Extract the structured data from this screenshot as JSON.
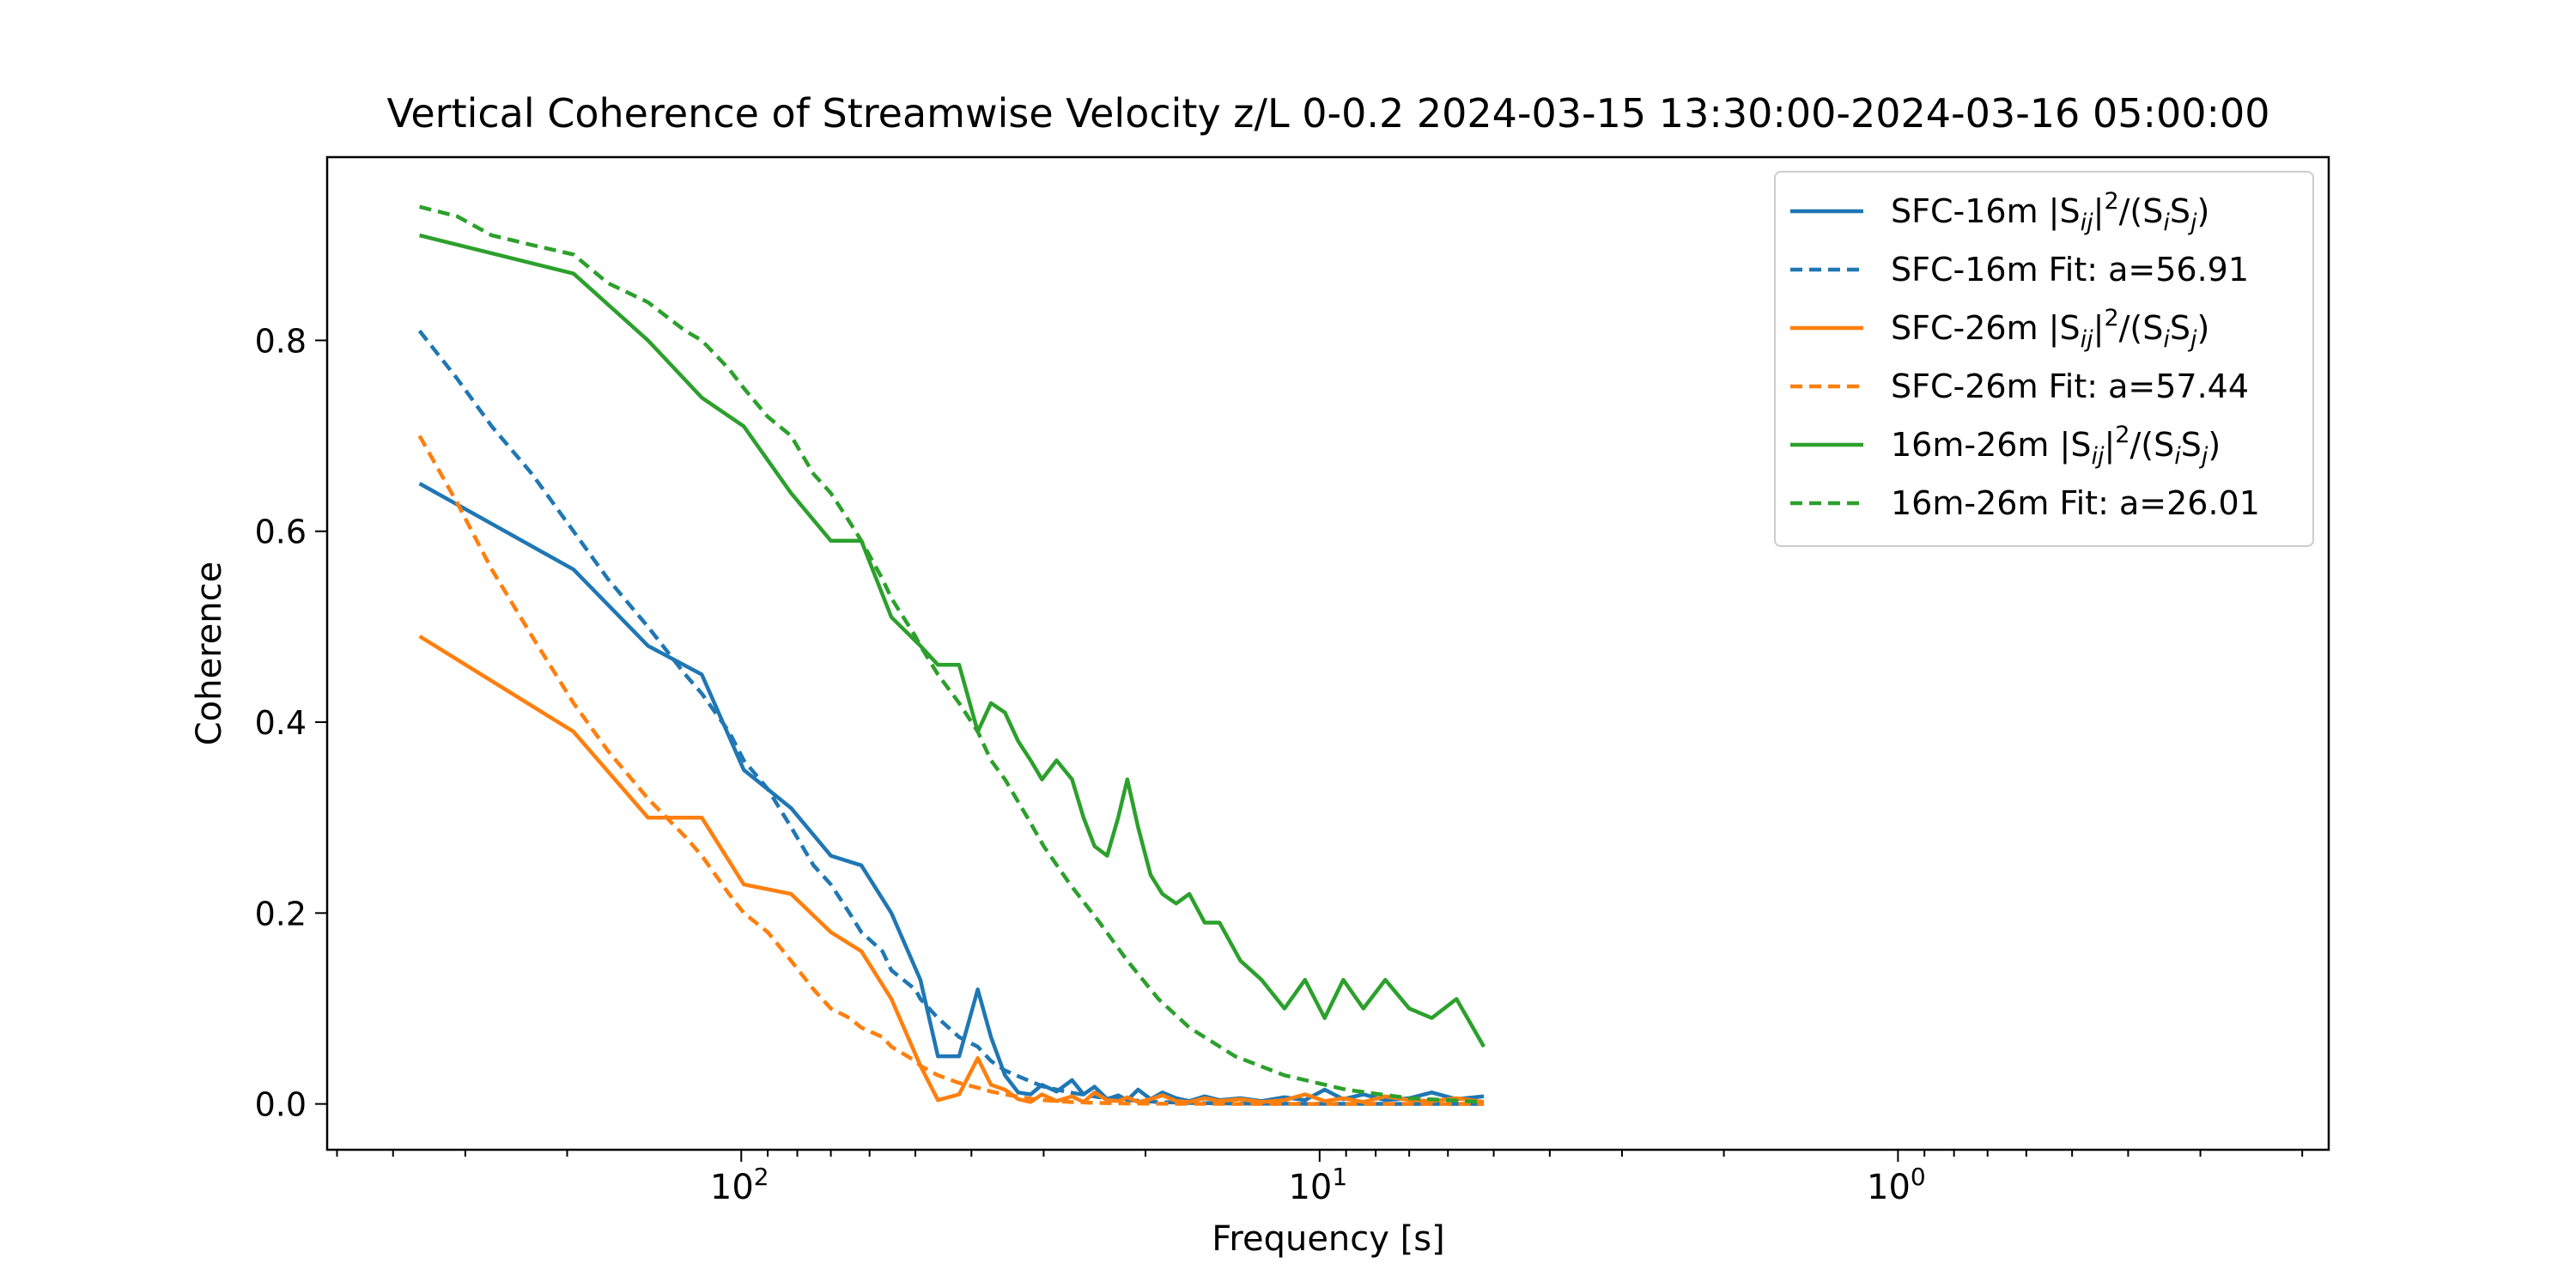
{
  "chart_data": {
    "type": "line",
    "title": "Vertical Coherence of Streamwise Velocity z/L 0-0.2 2024-03-15 13:30:00-2024-03-16 05:00:00",
    "xlabel": "Frequency [s]",
    "ylabel": "Coherence",
    "x_scale": "log",
    "x_reversed": true,
    "xlim": [
      520,
      0.18
    ],
    "ylim": [
      -0.048,
      0.992
    ],
    "grid": false,
    "legend_position": "top-right",
    "x_ticks": [
      {
        "value": 100,
        "base": "10",
        "exp": "2"
      },
      {
        "value": 10,
        "base": "10",
        "exp": "1"
      },
      {
        "value": 1,
        "base": "10",
        "exp": "0"
      }
    ],
    "y_ticks": [
      {
        "value": 0.0,
        "label": "0.0"
      },
      {
        "value": 0.2,
        "label": "0.2"
      },
      {
        "value": 0.4,
        "label": "0.4"
      },
      {
        "value": 0.6,
        "label": "0.6"
      },
      {
        "value": 0.8,
        "label": "0.8"
      }
    ],
    "series": [
      {
        "legend": {
          "prefix": "SFC-16m |S",
          "sub1": "ij",
          "mid1": "|",
          "sup": "2",
          "mid2": "/(S",
          "sub2": "i",
          "mid3": "S",
          "sub3": "j",
          "suffix": ")"
        },
        "color": "#1f77b4",
        "dash": false,
        "x": [
          360,
          195,
          145,
          117,
          99,
          82,
          70,
          62,
          55,
          49,
          45.7,
          42,
          39,
          37,
          35,
          33.2,
          31.6,
          30.2,
          28.5,
          26.8,
          25.6,
          24.5,
          23.3,
          22.3,
          21.5,
          20.6,
          19.6,
          18.7,
          17.7,
          16.8,
          15.8,
          14.9,
          13.7,
          12.6,
          11.5,
          10.6,
          9.8,
          9.1,
          8.4,
          7.7,
          7.0,
          6.4,
          5.8,
          5.2
        ],
        "y": [
          0.65,
          0.56,
          0.48,
          0.45,
          0.35,
          0.31,
          0.26,
          0.25,
          0.2,
          0.13,
          0.05,
          0.05,
          0.12,
          0.07,
          0.03,
          0.012,
          0.01,
          0.02,
          0.013,
          0.025,
          0.01,
          0.018,
          0.005,
          0.009,
          0.004,
          0.015,
          0.005,
          0.012,
          0.006,
          0.003,
          0.008,
          0.004,
          0.006,
          0.003,
          0.007,
          0.004,
          0.015,
          0.005,
          0.01,
          0.004,
          0.006,
          0.012,
          0.005,
          0.008
        ]
      },
      {
        "legend": {
          "prefix": "SFC-16m Fit: a=56.91"
        },
        "color": "#1f77b4",
        "dash": true,
        "x": [
          360,
          310,
          270,
          230,
          195,
          170,
          145,
          125,
          117,
          105,
          99,
          90,
          82,
          75,
          70,
          65,
          62,
          57,
          55,
          50,
          49,
          45.7,
          42,
          39,
          37,
          35,
          32,
          30,
          27,
          24,
          21.5,
          19,
          16.8,
          14,
          11.5,
          9,
          7,
          5.2
        ],
        "y": [
          0.81,
          0.76,
          0.71,
          0.66,
          0.6,
          0.55,
          0.5,
          0.45,
          0.43,
          0.39,
          0.36,
          0.33,
          0.29,
          0.25,
          0.23,
          0.2,
          0.18,
          0.16,
          0.14,
          0.12,
          0.11,
          0.09,
          0.07,
          0.06,
          0.045,
          0.035,
          0.025,
          0.018,
          0.012,
          0.007,
          0.004,
          0.002,
          0.001,
          0.0005,
          0.0002,
          0.0001,
          0.0,
          0.0
        ]
      },
      {
        "legend": {
          "prefix": "SFC-26m |S",
          "sub1": "ij",
          "mid1": "|",
          "sup": "2",
          "mid2": "/(S",
          "sub2": "i",
          "mid3": "S",
          "sub3": "j",
          "suffix": ")"
        },
        "color": "#ff7f0e",
        "dash": false,
        "x": [
          360,
          195,
          145,
          117,
          99,
          82,
          70,
          62,
          55,
          49,
          45.7,
          42,
          39,
          37,
          35,
          33.2,
          31.6,
          30.2,
          28.5,
          26.8,
          25.6,
          24.5,
          23.3,
          22.3,
          21.5,
          20.6,
          19.6,
          18.7,
          17.7,
          16.8,
          15.8,
          14.9,
          13.7,
          12.6,
          11.5,
          10.6,
          9.8,
          9.1,
          8.4,
          7.7,
          7.0,
          6.4,
          5.8,
          5.2
        ],
        "y": [
          0.49,
          0.39,
          0.3,
          0.3,
          0.23,
          0.22,
          0.18,
          0.16,
          0.11,
          0.04,
          0.004,
          0.01,
          0.048,
          0.02,
          0.015,
          0.005,
          0.002,
          0.01,
          0.003,
          0.008,
          0.002,
          0.012,
          0.004,
          0.003,
          0.007,
          0.002,
          0.005,
          0.009,
          0.003,
          0.002,
          0.006,
          0.003,
          0.005,
          0.002,
          0.004,
          0.01,
          0.003,
          0.006,
          0.002,
          0.008,
          0.004,
          0.003,
          0.006,
          0.002
        ]
      },
      {
        "legend": {
          "prefix": "SFC-26m Fit: a=57.44"
        },
        "color": "#ff7f0e",
        "dash": true,
        "x": [
          360,
          310,
          270,
          230,
          195,
          170,
          145,
          125,
          117,
          105,
          99,
          90,
          82,
          75,
          70,
          65,
          62,
          57,
          55,
          50,
          49,
          45.7,
          42,
          39,
          37,
          35,
          32,
          30,
          27,
          24,
          21.5,
          19,
          16.8,
          14,
          11.5,
          9,
          7,
          5.2
        ],
        "y": [
          0.7,
          0.63,
          0.56,
          0.49,
          0.42,
          0.37,
          0.32,
          0.28,
          0.26,
          0.22,
          0.2,
          0.18,
          0.15,
          0.12,
          0.1,
          0.09,
          0.08,
          0.07,
          0.06,
          0.045,
          0.04,
          0.03,
          0.022,
          0.017,
          0.013,
          0.01,
          0.006,
          0.004,
          0.002,
          0.001,
          0.0005,
          0.0002,
          0.0001,
          0.0,
          0.0,
          0.0,
          0.0,
          0.0
        ]
      },
      {
        "legend": {
          "prefix": "16m-26m |S",
          "sub1": "ij",
          "mid1": "|",
          "sup": "2",
          "mid2": "/(S",
          "sub2": "i",
          "mid3": "S",
          "sub3": "j",
          "suffix": ")"
        },
        "color": "#2ca02c",
        "dash": false,
        "x": [
          360,
          195,
          145,
          117,
          99,
          82,
          70,
          62,
          55,
          49,
          45.7,
          42,
          39,
          37,
          35,
          33.2,
          31.6,
          30.2,
          28.5,
          26.8,
          25.6,
          24.5,
          23.3,
          22.3,
          21.5,
          20.6,
          19.6,
          18.7,
          17.7,
          16.8,
          15.8,
          14.9,
          13.7,
          12.6,
          11.5,
          10.6,
          9.8,
          9.1,
          8.4,
          7.7,
          7.0,
          6.4,
          5.8,
          5.2
        ],
        "y": [
          0.91,
          0.87,
          0.8,
          0.74,
          0.71,
          0.64,
          0.59,
          0.59,
          0.51,
          0.48,
          0.46,
          0.46,
          0.39,
          0.42,
          0.41,
          0.38,
          0.36,
          0.34,
          0.36,
          0.34,
          0.3,
          0.27,
          0.26,
          0.3,
          0.34,
          0.29,
          0.24,
          0.22,
          0.21,
          0.22,
          0.19,
          0.19,
          0.15,
          0.13,
          0.1,
          0.13,
          0.09,
          0.13,
          0.1,
          0.13,
          0.1,
          0.09,
          0.11,
          0.06
        ]
      },
      {
        "legend": {
          "prefix": "16m-26m Fit: a=26.01"
        },
        "color": "#2ca02c",
        "dash": true,
        "x": [
          360,
          310,
          270,
          230,
          195,
          170,
          145,
          125,
          117,
          105,
          99,
          90,
          82,
          75,
          70,
          65,
          62,
          57,
          55,
          50,
          49,
          45.7,
          42,
          39,
          37,
          35,
          32,
          30,
          27,
          24,
          21.5,
          19,
          16.8,
          14,
          11.5,
          9,
          7,
          5.2
        ],
        "y": [
          0.94,
          0.93,
          0.91,
          0.9,
          0.89,
          0.86,
          0.84,
          0.81,
          0.8,
          0.77,
          0.75,
          0.72,
          0.7,
          0.66,
          0.64,
          0.61,
          0.59,
          0.55,
          0.53,
          0.49,
          0.48,
          0.45,
          0.42,
          0.39,
          0.36,
          0.34,
          0.3,
          0.27,
          0.23,
          0.19,
          0.15,
          0.11,
          0.08,
          0.05,
          0.03,
          0.015,
          0.006,
          0.002
        ]
      }
    ]
  }
}
